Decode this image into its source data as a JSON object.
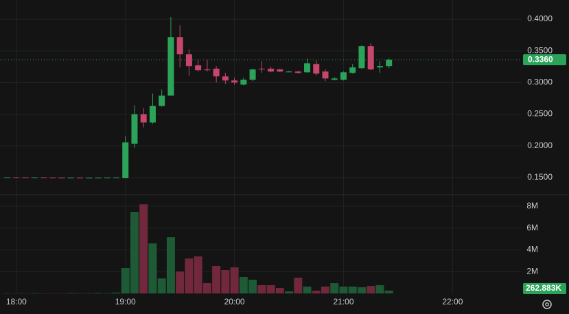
{
  "chart_data": {
    "type": "candlestick",
    "x": [
      "17:55",
      "18:00",
      "18:05",
      "18:10",
      "18:15",
      "18:20",
      "18:25",
      "18:30",
      "18:35",
      "18:40",
      "18:45",
      "18:50",
      "18:55",
      "19:00",
      "19:05",
      "19:10",
      "19:15",
      "19:20",
      "19:25",
      "19:30",
      "19:35",
      "19:40",
      "19:45",
      "19:50",
      "19:55",
      "20:00",
      "20:05",
      "20:10",
      "20:15",
      "20:20",
      "20:25",
      "20:30",
      "20:35",
      "20:40",
      "20:45",
      "20:50",
      "20:55",
      "21:00",
      "21:05",
      "21:10",
      "21:15",
      "21:20",
      "21:25"
    ],
    "open": [
      0.15,
      0.1501,
      0.15,
      0.1499,
      0.15,
      0.1498,
      0.1497,
      0.1496,
      0.1497,
      0.1495,
      0.1496,
      0.1497,
      0.1498,
      0.149,
      0.2033,
      0.25,
      0.237,
      0.263,
      0.2793,
      0.3717,
      0.3446,
      0.3272,
      0.3207,
      0.3217,
      0.3098,
      0.3033,
      0.2967,
      0.3043,
      0.3217,
      0.3217,
      0.3207,
      0.317,
      0.3174,
      0.3163,
      0.3293,
      0.3174,
      0.3043,
      0.3043,
      0.3152,
      0.3228,
      0.3576,
      0.3239,
      0.3261
    ],
    "high": [
      0.1502,
      0.1502,
      0.1501,
      0.1501,
      0.1501,
      0.15,
      0.1499,
      0.1498,
      0.1498,
      0.1497,
      0.1498,
      0.1499,
      0.15,
      0.216,
      0.2641,
      0.2598,
      0.2826,
      0.2891,
      0.4033,
      0.3902,
      0.3522,
      0.337,
      0.3359,
      0.3261,
      0.3152,
      0.3076,
      0.3076,
      0.3217,
      0.3337,
      0.325,
      0.3217,
      0.3185,
      0.3185,
      0.338,
      0.3348,
      0.3207,
      0.3087,
      0.3174,
      0.3293,
      0.3587,
      0.362,
      0.3337,
      0.338
    ],
    "low": [
      0.1499,
      0.1499,
      0.1498,
      0.1498,
      0.1497,
      0.1496,
      0.1495,
      0.1495,
      0.1494,
      0.1494,
      0.1495,
      0.1495,
      0.1496,
      0.149,
      0.1967,
      0.2293,
      0.2348,
      0.262,
      0.2793,
      0.3239,
      0.3109,
      0.3174,
      0.3174,
      0.3,
      0.2978,
      0.2967,
      0.2957,
      0.3022,
      0.3152,
      0.3163,
      0.3163,
      0.3163,
      0.3141,
      0.3152,
      0.3109,
      0.3022,
      0.3033,
      0.3033,
      0.3141,
      0.3217,
      0.3196,
      0.3152,
      0.3228
    ],
    "close": [
      0.1501,
      0.15,
      0.1499,
      0.15,
      0.1498,
      0.1497,
      0.1496,
      0.1497,
      0.1495,
      0.1496,
      0.1497,
      0.1498,
      0.1499,
      0.2055,
      0.25,
      0.237,
      0.263,
      0.2793,
      0.3717,
      0.3446,
      0.3261,
      0.3196,
      0.3196,
      0.3098,
      0.3033,
      0.3,
      0.3043,
      0.3207,
      0.3207,
      0.3174,
      0.3174,
      0.3174,
      0.3152,
      0.3304,
      0.3141,
      0.3065,
      0.3065,
      0.3163,
      0.3239,
      0.3576,
      0.3207,
      0.3261,
      0.336
    ],
    "volume": [
      20000,
      30000,
      25000,
      40000,
      20000,
      35000,
      30000,
      50000,
      25000,
      40000,
      60000,
      45000,
      80000,
      2330000,
      7490000,
      8180000,
      4590000,
      1380000,
      5160000,
      2010000,
      3210000,
      3400000,
      940000,
      2520000,
      2140000,
      2390000,
      1510000,
      1260000,
      760000,
      760000,
      500000,
      190000,
      1450000,
      630000,
      250000,
      630000,
      940000,
      630000,
      630000,
      570000,
      690000,
      760000,
      262883
    ],
    "up_color": "#2ba45a",
    "down_color": "#c8456d",
    "up_volume_color": "#1d5a35",
    "down_volume_color": "#72283c",
    "xlim": [
      "17:51",
      "22:38"
    ],
    "xticks": [
      "18:00",
      "19:00",
      "20:00",
      "21:00",
      "22:00"
    ],
    "ylim": [
      0.1239,
      0.4304
    ],
    "yticks": [
      {
        "value": 0.15,
        "label": "0.1500"
      },
      {
        "value": 0.2,
        "label": "0.2000"
      },
      {
        "value": 0.25,
        "label": "0.2500"
      },
      {
        "value": 0.3,
        "label": "0.3000"
      },
      {
        "value": 0.35,
        "label": "0.3500"
      },
      {
        "value": 0.4,
        "label": "0.4000"
      }
    ],
    "volume_ylim": [
      0,
      9000000
    ],
    "volume_yticks": [
      {
        "value": 2000000,
        "label": "2M"
      },
      {
        "value": 4000000,
        "label": "4M"
      },
      {
        "value": 6000000,
        "label": "6M"
      },
      {
        "value": 8000000,
        "label": "8M"
      }
    ],
    "last_close_label": "0.3360",
    "last_volume_label": "262.883K",
    "grid": true
  }
}
